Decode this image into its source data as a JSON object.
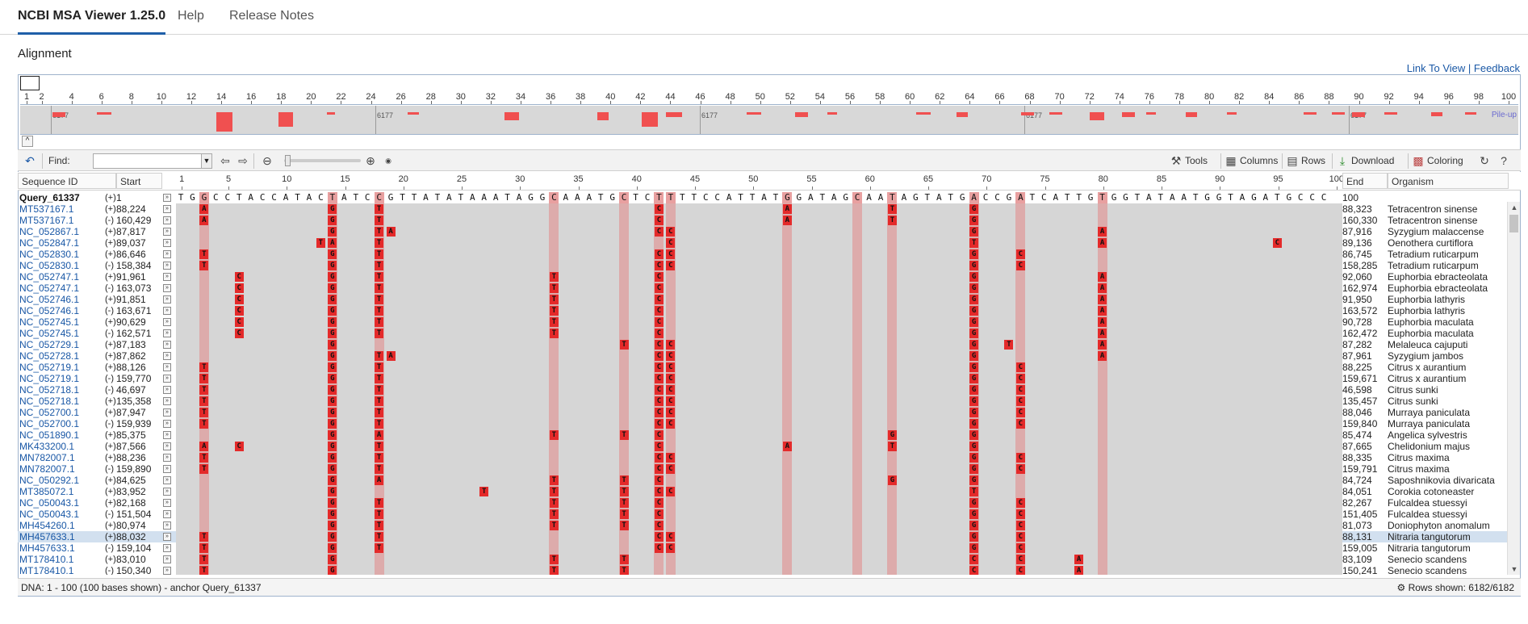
{
  "app": {
    "title": "NCBI MSA Viewer 1.25.0",
    "tabs": [
      "Help",
      "Release Notes"
    ]
  },
  "section_title": "Alignment",
  "links": {
    "link_to_view": "Link To View",
    "separator": " | ",
    "feedback": "Feedback"
  },
  "overview": {
    "ticks": [
      "1",
      "2",
      "4",
      "6",
      "8",
      "10",
      "12",
      "14",
      "16",
      "18",
      "20",
      "22",
      "24",
      "26",
      "28",
      "30",
      "32",
      "34",
      "36",
      "38",
      "40",
      "42",
      "44",
      "46",
      "48",
      "50",
      "52",
      "54",
      "56",
      "58",
      "60",
      "62",
      "64",
      "66",
      "68",
      "70",
      "72",
      "74",
      "76",
      "78",
      "80",
      "82",
      "84",
      "86",
      "88",
      "90",
      "92",
      "94",
      "96",
      "98",
      "100"
    ],
    "segment_labels": [
      "6177",
      "6177",
      "6177",
      "6177",
      "6177"
    ],
    "pileup_label": "Pile-up"
  },
  "toolbar": {
    "find_label": "Find:",
    "find_value": "",
    "tools": "Tools",
    "columns": "Columns",
    "rows": "Rows",
    "download": "Download",
    "coloring": "Coloring"
  },
  "columns": {
    "sequence_id": "Sequence ID",
    "start": "Start",
    "end": "End",
    "organism": "Organism"
  },
  "ruler": [
    "1",
    "5",
    "10",
    "15",
    "20",
    "25",
    "30",
    "35",
    "40",
    "45",
    "50",
    "55",
    "60",
    "65",
    "70",
    "75",
    "80",
    "85",
    "90",
    "95",
    "100"
  ],
  "query": {
    "id": "Query_61337",
    "strand": "(+)",
    "start": "1",
    "end": "100",
    "sequence": "TGGCCTACCATACTATCCGTTATATAAATAGGCAAATGCTCTTTTCCATTATGGATAGCAATAGTATGACCGATCATTGTGGTATAATGGTAGATGCCC"
  },
  "variable_columns": [
    3,
    14,
    18,
    33,
    39,
    42,
    43,
    53,
    59,
    62,
    69,
    73,
    80
  ],
  "rows": [
    {
      "id": "MT537167.1",
      "strand": "(+)",
      "start": "88,224",
      "end": "88,323",
      "organism": "Tetracentron sinense",
      "mm": [
        [
          3,
          "A"
        ],
        [
          14,
          "G"
        ],
        [
          18,
          "T"
        ],
        [
          42,
          "C"
        ],
        [
          53,
          "A"
        ],
        [
          62,
          "T"
        ],
        [
          69,
          "G"
        ]
      ]
    },
    {
      "id": "MT537167.1",
      "strand": "(-)",
      "start": "160,429",
      "end": "160,330",
      "organism": "Tetracentron sinense",
      "mm": [
        [
          3,
          "A"
        ],
        [
          14,
          "G"
        ],
        [
          18,
          "T"
        ],
        [
          42,
          "C"
        ],
        [
          53,
          "A"
        ],
        [
          62,
          "T"
        ],
        [
          69,
          "G"
        ]
      ]
    },
    {
      "id": "NC_052867.1",
      "strand": "(+)",
      "start": "87,817",
      "end": "87,916",
      "organism": "Syzygium malaccense",
      "mm": [
        [
          14,
          "G"
        ],
        [
          18,
          "T"
        ],
        [
          19,
          "A"
        ],
        [
          42,
          "C"
        ],
        [
          43,
          "C"
        ],
        [
          69,
          "G"
        ],
        [
          80,
          "A"
        ]
      ]
    },
    {
      "id": "NC_052847.1",
      "strand": "(+)",
      "start": "89,037",
      "end": "89,136",
      "organism": "Oenothera curtiflora",
      "mm": [
        [
          13,
          "T"
        ],
        [
          14,
          "A"
        ],
        [
          18,
          "T"
        ],
        [
          43,
          "C"
        ],
        [
          69,
          "T"
        ],
        [
          80,
          "A"
        ],
        [
          95,
          "C"
        ]
      ]
    },
    {
      "id": "NC_052830.1",
      "strand": "(+)",
      "start": "86,646",
      "end": "86,745",
      "organism": "Tetradium ruticarpum",
      "mm": [
        [
          3,
          "T"
        ],
        [
          14,
          "G"
        ],
        [
          18,
          "T"
        ],
        [
          42,
          "C"
        ],
        [
          43,
          "C"
        ],
        [
          69,
          "G"
        ],
        [
          73,
          "C"
        ]
      ]
    },
    {
      "id": "NC_052830.1",
      "strand": "(-)",
      "start": "158,384",
      "end": "158,285",
      "organism": "Tetradium ruticarpum",
      "mm": [
        [
          3,
          "T"
        ],
        [
          14,
          "G"
        ],
        [
          18,
          "T"
        ],
        [
          42,
          "C"
        ],
        [
          43,
          "C"
        ],
        [
          69,
          "G"
        ],
        [
          73,
          "C"
        ]
      ]
    },
    {
      "id": "NC_052747.1",
      "strand": "(+)",
      "start": "91,961",
      "end": "92,060",
      "organism": "Euphorbia ebracteolata",
      "mm": [
        [
          6,
          "C"
        ],
        [
          14,
          "G"
        ],
        [
          18,
          "T"
        ],
        [
          33,
          "T"
        ],
        [
          42,
          "C"
        ],
        [
          69,
          "G"
        ],
        [
          80,
          "A"
        ]
      ]
    },
    {
      "id": "NC_052747.1",
      "strand": "(-)",
      "start": "163,073",
      "end": "162,974",
      "organism": "Euphorbia ebracteolata",
      "mm": [
        [
          6,
          "C"
        ],
        [
          14,
          "G"
        ],
        [
          18,
          "T"
        ],
        [
          33,
          "T"
        ],
        [
          42,
          "C"
        ],
        [
          69,
          "G"
        ],
        [
          80,
          "A"
        ]
      ]
    },
    {
      "id": "NC_052746.1",
      "strand": "(+)",
      "start": "91,851",
      "end": "91,950",
      "organism": "Euphorbia lathyris",
      "mm": [
        [
          6,
          "C"
        ],
        [
          14,
          "G"
        ],
        [
          18,
          "T"
        ],
        [
          33,
          "T"
        ],
        [
          42,
          "C"
        ],
        [
          69,
          "G"
        ],
        [
          80,
          "A"
        ]
      ]
    },
    {
      "id": "NC_052746.1",
      "strand": "(-)",
      "start": "163,671",
      "end": "163,572",
      "organism": "Euphorbia lathyris",
      "mm": [
        [
          6,
          "C"
        ],
        [
          14,
          "G"
        ],
        [
          18,
          "T"
        ],
        [
          33,
          "T"
        ],
        [
          42,
          "C"
        ],
        [
          69,
          "G"
        ],
        [
          80,
          "A"
        ]
      ]
    },
    {
      "id": "NC_052745.1",
      "strand": "(+)",
      "start": "90,629",
      "end": "90,728",
      "organism": "Euphorbia maculata",
      "mm": [
        [
          6,
          "C"
        ],
        [
          14,
          "G"
        ],
        [
          18,
          "T"
        ],
        [
          33,
          "T"
        ],
        [
          42,
          "C"
        ],
        [
          69,
          "G"
        ],
        [
          80,
          "A"
        ]
      ]
    },
    {
      "id": "NC_052745.1",
      "strand": "(-)",
      "start": "162,571",
      "end": "162,472",
      "organism": "Euphorbia maculata",
      "mm": [
        [
          6,
          "C"
        ],
        [
          14,
          "G"
        ],
        [
          18,
          "T"
        ],
        [
          33,
          "T"
        ],
        [
          42,
          "C"
        ],
        [
          69,
          "G"
        ],
        [
          80,
          "A"
        ]
      ]
    },
    {
      "id": "NC_052729.1",
      "strand": "(+)",
      "start": "87,183",
      "end": "87,282",
      "organism": "Melaleuca cajuputi",
      "mm": [
        [
          14,
          "G"
        ],
        [
          39,
          "T"
        ],
        [
          42,
          "C"
        ],
        [
          43,
          "C"
        ],
        [
          69,
          "G"
        ],
        [
          72,
          "T"
        ],
        [
          80,
          "A"
        ]
      ]
    },
    {
      "id": "NC_052728.1",
      "strand": "(+)",
      "start": "87,862",
      "end": "87,961",
      "organism": "Syzygium jambos",
      "mm": [
        [
          14,
          "G"
        ],
        [
          18,
          "T"
        ],
        [
          19,
          "A"
        ],
        [
          42,
          "C"
        ],
        [
          43,
          "C"
        ],
        [
          69,
          "G"
        ],
        [
          80,
          "A"
        ]
      ]
    },
    {
      "id": "NC_052719.1",
      "strand": "(+)",
      "start": "88,126",
      "end": "88,225",
      "organism": "Citrus x aurantium",
      "mm": [
        [
          3,
          "T"
        ],
        [
          14,
          "G"
        ],
        [
          18,
          "T"
        ],
        [
          42,
          "C"
        ],
        [
          43,
          "C"
        ],
        [
          69,
          "G"
        ],
        [
          73,
          "C"
        ]
      ]
    },
    {
      "id": "NC_052719.1",
      "strand": "(-)",
      "start": "159,770",
      "end": "159,671",
      "organism": "Citrus x aurantium",
      "mm": [
        [
          3,
          "T"
        ],
        [
          14,
          "G"
        ],
        [
          18,
          "T"
        ],
        [
          42,
          "C"
        ],
        [
          43,
          "C"
        ],
        [
          69,
          "G"
        ],
        [
          73,
          "C"
        ]
      ]
    },
    {
      "id": "NC_052718.1",
      "strand": "(-)",
      "start": "46,697",
      "end": "46,598",
      "organism": "Citrus sunki",
      "mm": [
        [
          3,
          "T"
        ],
        [
          14,
          "G"
        ],
        [
          18,
          "T"
        ],
        [
          42,
          "C"
        ],
        [
          43,
          "C"
        ],
        [
          69,
          "G"
        ],
        [
          73,
          "C"
        ]
      ]
    },
    {
      "id": "NC_052718.1",
      "strand": "(+)",
      "start": "135,358",
      "end": "135,457",
      "organism": "Citrus sunki",
      "mm": [
        [
          3,
          "T"
        ],
        [
          14,
          "G"
        ],
        [
          18,
          "T"
        ],
        [
          42,
          "C"
        ],
        [
          43,
          "C"
        ],
        [
          69,
          "G"
        ],
        [
          73,
          "C"
        ]
      ]
    },
    {
      "id": "NC_052700.1",
      "strand": "(+)",
      "start": "87,947",
      "end": "88,046",
      "organism": "Murraya paniculata",
      "mm": [
        [
          3,
          "T"
        ],
        [
          14,
          "G"
        ],
        [
          18,
          "T"
        ],
        [
          42,
          "C"
        ],
        [
          43,
          "C"
        ],
        [
          69,
          "G"
        ],
        [
          73,
          "C"
        ]
      ]
    },
    {
      "id": "NC_052700.1",
      "strand": "(-)",
      "start": "159,939",
      "end": "159,840",
      "organism": "Murraya paniculata",
      "mm": [
        [
          3,
          "T"
        ],
        [
          14,
          "G"
        ],
        [
          18,
          "T"
        ],
        [
          42,
          "C"
        ],
        [
          43,
          "C"
        ],
        [
          69,
          "G"
        ],
        [
          73,
          "C"
        ]
      ]
    },
    {
      "id": "NC_051890.1",
      "strand": "(+)",
      "start": "85,375",
      "end": "85,474",
      "organism": "Angelica sylvestris",
      "mm": [
        [
          14,
          "G"
        ],
        [
          18,
          "A"
        ],
        [
          33,
          "T"
        ],
        [
          39,
          "T"
        ],
        [
          42,
          "C"
        ],
        [
          62,
          "G"
        ],
        [
          69,
          "G"
        ]
      ]
    },
    {
      "id": "MK433200.1",
      "strand": "(+)",
      "start": "87,566",
      "end": "87,665",
      "organism": "Chelidonium majus",
      "mm": [
        [
          3,
          "A"
        ],
        [
          6,
          "C"
        ],
        [
          14,
          "G"
        ],
        [
          18,
          "T"
        ],
        [
          42,
          "C"
        ],
        [
          53,
          "A"
        ],
        [
          62,
          "T"
        ],
        [
          69,
          "G"
        ]
      ]
    },
    {
      "id": "MN782007.1",
      "strand": "(+)",
      "start": "88,236",
      "end": "88,335",
      "organism": "Citrus maxima",
      "mm": [
        [
          3,
          "T"
        ],
        [
          14,
          "G"
        ],
        [
          18,
          "T"
        ],
        [
          42,
          "C"
        ],
        [
          43,
          "C"
        ],
        [
          69,
          "G"
        ],
        [
          73,
          "C"
        ]
      ]
    },
    {
      "id": "MN782007.1",
      "strand": "(-)",
      "start": "159,890",
      "end": "159,791",
      "organism": "Citrus maxima",
      "mm": [
        [
          3,
          "T"
        ],
        [
          14,
          "G"
        ],
        [
          18,
          "T"
        ],
        [
          42,
          "C"
        ],
        [
          43,
          "C"
        ],
        [
          69,
          "G"
        ],
        [
          73,
          "C"
        ]
      ]
    },
    {
      "id": "NC_050292.1",
      "strand": "(+)",
      "start": "84,625",
      "end": "84,724",
      "organism": "Saposhnikovia divaricata",
      "mm": [
        [
          14,
          "G"
        ],
        [
          18,
          "A"
        ],
        [
          33,
          "T"
        ],
        [
          39,
          "T"
        ],
        [
          42,
          "C"
        ],
        [
          62,
          "G"
        ],
        [
          69,
          "G"
        ]
      ]
    },
    {
      "id": "MT385072.1",
      "strand": "(+)",
      "start": "83,952",
      "end": "84,051",
      "organism": "Corokia cotoneaster",
      "mm": [
        [
          14,
          "G"
        ],
        [
          27,
          "T"
        ],
        [
          33,
          "T"
        ],
        [
          39,
          "T"
        ],
        [
          42,
          "C"
        ],
        [
          43,
          "C"
        ],
        [
          69,
          "T"
        ]
      ]
    },
    {
      "id": "NC_050043.1",
      "strand": "(+)",
      "start": "82,168",
      "end": "82,267",
      "organism": "Fulcaldea stuessyi",
      "mm": [
        [
          14,
          "G"
        ],
        [
          18,
          "T"
        ],
        [
          33,
          "T"
        ],
        [
          39,
          "T"
        ],
        [
          42,
          "C"
        ],
        [
          69,
          "G"
        ],
        [
          73,
          "C"
        ]
      ]
    },
    {
      "id": "NC_050043.1",
      "strand": "(-)",
      "start": "151,504",
      "end": "151,405",
      "organism": "Fulcaldea stuessyi",
      "mm": [
        [
          14,
          "G"
        ],
        [
          18,
          "T"
        ],
        [
          33,
          "T"
        ],
        [
          39,
          "T"
        ],
        [
          42,
          "C"
        ],
        [
          69,
          "G"
        ],
        [
          73,
          "C"
        ]
      ]
    },
    {
      "id": "MH454260.1",
      "strand": "(+)",
      "start": "80,974",
      "end": "81,073",
      "organism": "Doniophyton anomalum",
      "mm": [
        [
          14,
          "G"
        ],
        [
          18,
          "T"
        ],
        [
          33,
          "T"
        ],
        [
          39,
          "T"
        ],
        [
          42,
          "C"
        ],
        [
          69,
          "G"
        ],
        [
          73,
          "C"
        ]
      ]
    },
    {
      "id": "MH457633.1",
      "strand": "(+)",
      "start": "88,032",
      "end": "88,131",
      "organism": "Nitraria tangutorum",
      "hl": true,
      "mm": [
        [
          3,
          "T"
        ],
        [
          14,
          "G"
        ],
        [
          18,
          "T"
        ],
        [
          42,
          "C"
        ],
        [
          43,
          "C"
        ],
        [
          69,
          "G"
        ],
        [
          73,
          "C"
        ]
      ]
    },
    {
      "id": "MH457633.1",
      "strand": "(-)",
      "start": "159,104",
      "end": "159,005",
      "organism": "Nitraria tangutorum",
      "mm": [
        [
          3,
          "T"
        ],
        [
          14,
          "G"
        ],
        [
          18,
          "T"
        ],
        [
          42,
          "C"
        ],
        [
          43,
          "C"
        ],
        [
          69,
          "G"
        ],
        [
          73,
          "C"
        ]
      ]
    },
    {
      "id": "MT178410.1",
      "strand": "(+)",
      "start": "83,010",
      "end": "83,109",
      "organism": "Senecio scandens",
      "mm": [
        [
          3,
          "T"
        ],
        [
          14,
          "G"
        ],
        [
          33,
          "T"
        ],
        [
          39,
          "T"
        ],
        [
          69,
          "C"
        ],
        [
          73,
          "C"
        ],
        [
          78,
          "A"
        ]
      ]
    },
    {
      "id": "MT178410.1",
      "strand": "(-)",
      "start": "150,340",
      "end": "150,241",
      "organism": "Senecio scandens",
      "mm": [
        [
          3,
          "T"
        ],
        [
          14,
          "G"
        ],
        [
          33,
          "T"
        ],
        [
          39,
          "T"
        ],
        [
          69,
          "C"
        ],
        [
          73,
          "C"
        ],
        [
          78,
          "A"
        ]
      ]
    }
  ],
  "status": {
    "left": "DNA: 1 - 100 (100 bases shown) - anchor Query_61337",
    "right": "Rows shown: 6182/6182"
  },
  "colors": {
    "accent": "#1f5fa8",
    "mismatch": "#e42a2a",
    "variable_column": "#e8a0a0",
    "link": "#1a58a6"
  }
}
